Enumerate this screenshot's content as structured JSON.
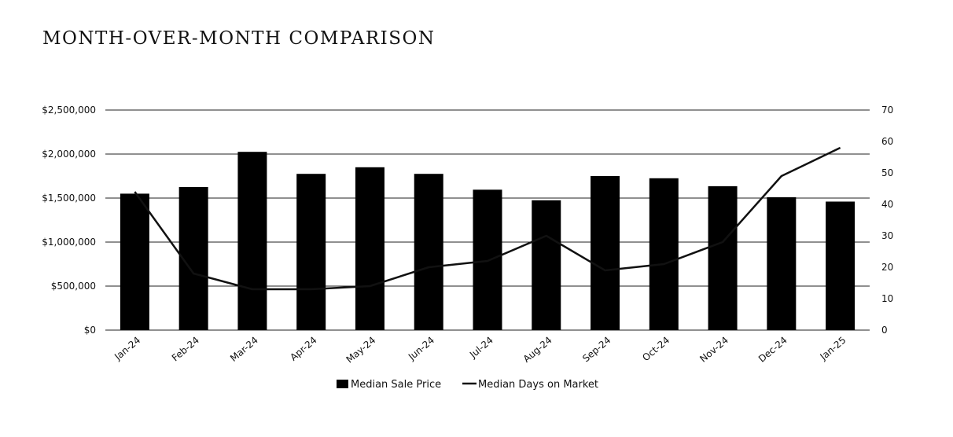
{
  "title": "MONTH-OVER-MONTH COMPARISON",
  "chart_data": {
    "type": "bar",
    "categories": [
      "Jan-24",
      "Feb-24",
      "Mar-24",
      "Apr-24",
      "May-24",
      "Jun-24",
      "Jul-24",
      "Aug-24",
      "Sep-24",
      "Oct-24",
      "Nov-24",
      "Dec-24",
      "Jan-25"
    ],
    "series": [
      {
        "name": "Median Sale Price",
        "type": "bar",
        "axis": "left",
        "values": [
          1550000,
          1625000,
          2025000,
          1775000,
          1850000,
          1775000,
          1595000,
          1475000,
          1750000,
          1725000,
          1635000,
          1510000,
          1460000
        ]
      },
      {
        "name": "Median Days on Market",
        "type": "line",
        "axis": "right",
        "values": [
          44,
          18,
          13,
          13,
          14,
          20,
          22,
          30,
          19,
          21,
          28,
          49,
          58
        ]
      }
    ],
    "y_left": {
      "ylim": [
        0,
        2500000
      ],
      "ticks": [
        0,
        500000,
        1000000,
        1500000,
        2000000,
        2500000
      ],
      "tick_labels": [
        "$0",
        "$500,000",
        "$1,000,000",
        "$1,500,000",
        "$2,000,000",
        "$2,500,000"
      ]
    },
    "y_right": {
      "ylim": [
        0,
        70
      ],
      "ticks": [
        0,
        10,
        20,
        30,
        40,
        50,
        60,
        70
      ],
      "tick_labels": [
        "0",
        "10",
        "20",
        "30",
        "40",
        "50",
        "60",
        "70"
      ]
    },
    "grid": true,
    "legend": "bottom",
    "colors": {
      "bar": "#000000",
      "line": "#111111",
      "grid": "#222222"
    }
  }
}
